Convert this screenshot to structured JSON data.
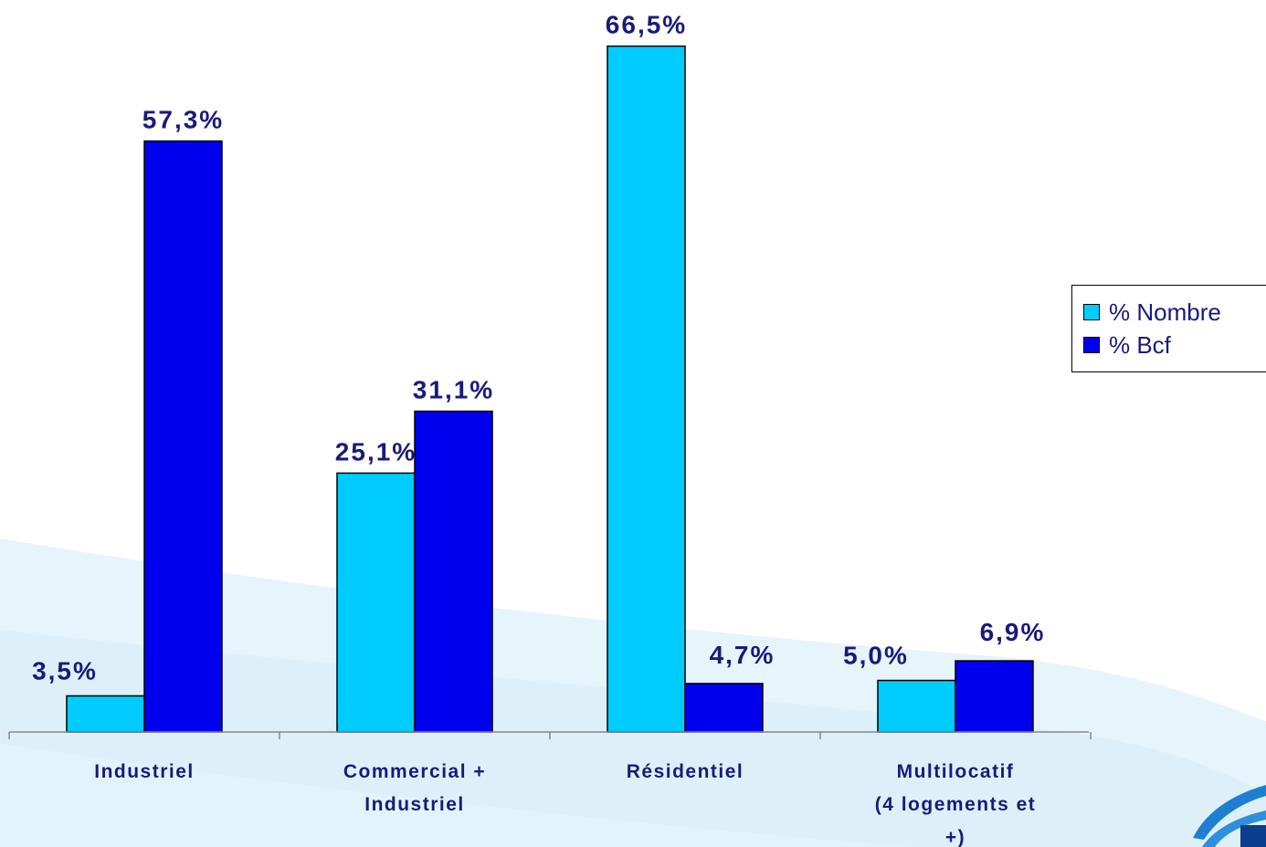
{
  "colors": {
    "series_nombre": "#00ccff",
    "series_bcf": "#0000ee",
    "label_text": "#1a1a7a",
    "swoosh_light": "#e6f4fb",
    "swoosh_mid": "#cfe9f7",
    "logo_blue": "#1e7fd0"
  },
  "chart_data": {
    "type": "bar",
    "title": "",
    "xlabel": "",
    "ylabel": "",
    "ylim": [
      0,
      70
    ],
    "grid": false,
    "legend_position": "right",
    "categories": [
      [
        "Industriel"
      ],
      [
        "Commercial +",
        "Industriel"
      ],
      [
        "Résidentiel"
      ],
      [
        "Multilocatif",
        "(4 logements et",
        "+)"
      ]
    ],
    "series": [
      {
        "name": "% Nombre",
        "values": [
          3.5,
          25.1,
          66.5,
          5.0
        ],
        "labels": [
          "3,5%",
          "25,1%",
          "66,5%",
          "5,0%"
        ]
      },
      {
        "name": "% Bcf",
        "values": [
          57.3,
          31.1,
          4.7,
          6.9
        ],
        "labels": [
          "57,3%",
          "31,1%",
          "4,7%",
          "6,9%"
        ]
      }
    ]
  },
  "legend": {
    "items": [
      {
        "label": "% Nombre",
        "icon": "cyan-square-swatch"
      },
      {
        "label": "% Bcf",
        "icon": "blue-square-swatch"
      }
    ]
  },
  "logo": {
    "icon": "company-logo-swoosh-icon"
  }
}
